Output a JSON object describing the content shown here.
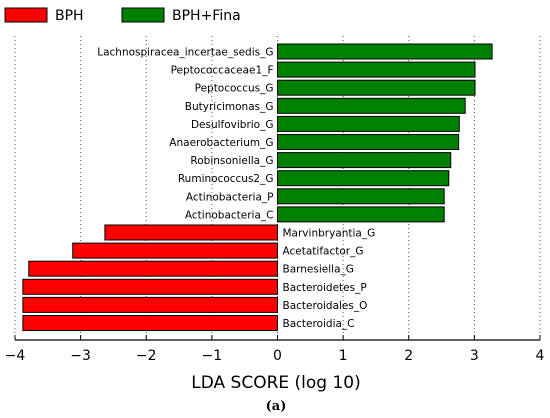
{
  "chart_data": {
    "type": "bar",
    "orientation": "horizontal",
    "xlabel": "LDA SCORE (log 10)",
    "xlim": [
      -4,
      4
    ],
    "xticks": [
      -4,
      -3,
      -2,
      -1,
      0,
      1,
      2,
      3,
      4
    ],
    "xtick_labels": [
      "−4",
      "−3",
      "−2",
      "−1",
      "0",
      "1",
      "2",
      "3",
      "4"
    ],
    "grid": "vertical dotted",
    "legend_position": "top-left",
    "caption": "(a)",
    "series": [
      {
        "name": "BPH+Fina",
        "color": "#008000",
        "categories": [
          "Lachnospiracea_incertae_sedis_G",
          "Peptococcaceae1_F",
          "Peptococcus_G",
          "Butyricimonas_G",
          "Desulfovibrio_G",
          "Anaerobacterium_G",
          "Robinsoniella_G",
          "Ruminococcus2_G",
          "Actinobacteria_P",
          "Actinobacteria_C"
        ],
        "values": [
          3.27,
          3.01,
          3.01,
          2.86,
          2.77,
          2.76,
          2.64,
          2.61,
          2.54,
          2.54
        ]
      },
      {
        "name": "BPH",
        "color": "#ff0000",
        "categories": [
          "Marvinbryantia_G",
          "Acetatifactor_G",
          "Barnesiella_G",
          "Bacteroidetes_P",
          "Bacteroidales_O",
          "Bacteroidia_C"
        ],
        "values": [
          -2.63,
          -3.12,
          -3.79,
          -3.88,
          -3.88,
          -3.88
        ]
      }
    ]
  }
}
